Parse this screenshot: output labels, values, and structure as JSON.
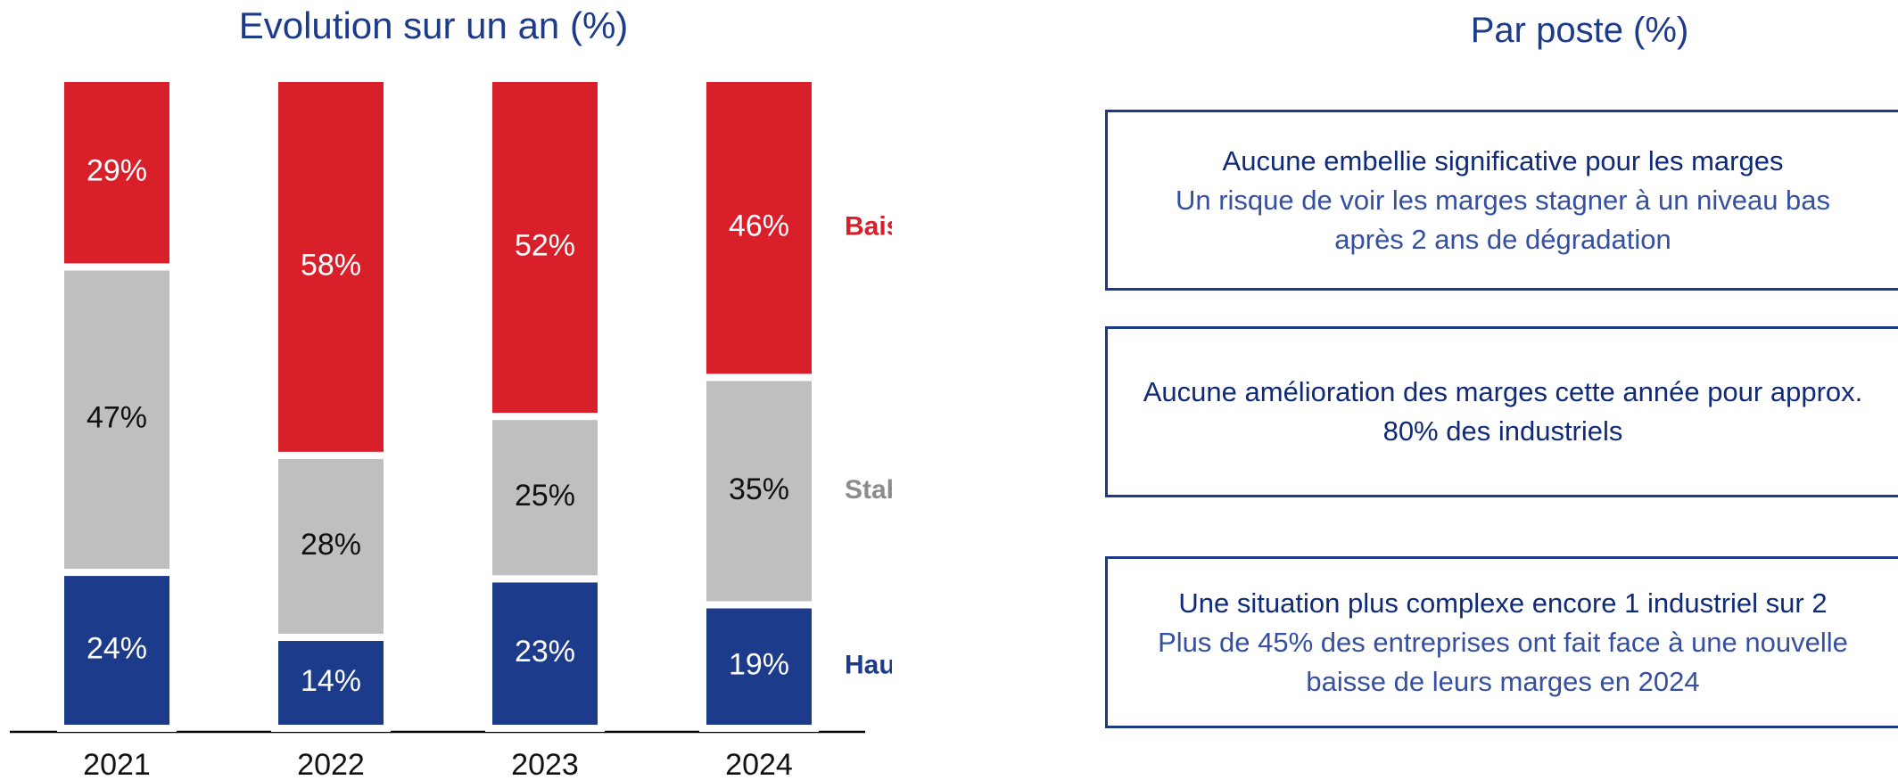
{
  "chart_data": {
    "type": "stacked_bar",
    "title": "Evolution sur un an (%)",
    "categories": [
      "2021",
      "2022",
      "2023",
      "2024"
    ],
    "series": [
      {
        "name": "Hausse",
        "color": "#1d3b8b",
        "label_color": "#ffffff",
        "values": [
          24,
          14,
          23,
          19
        ],
        "value_labels": [
          "24%",
          "14%",
          "23%",
          "19%"
        ]
      },
      {
        "name": "Stable",
        "color": "#bfbfbf",
        "label_color": "#111111",
        "values": [
          47,
          28,
          25,
          35
        ],
        "value_labels": [
          "47%",
          "28%",
          "25%",
          "35%"
        ]
      },
      {
        "name": "Baisse",
        "color": "#d9202a",
        "label_color": "#ffffff",
        "values": [
          29,
          58,
          52,
          46
        ],
        "value_labels": [
          "29%",
          "58%",
          "52%",
          "46%"
        ]
      }
    ]
  },
  "panel": {
    "title": "Par poste (%)",
    "boxes": [
      {
        "heading": "Aucune embellie significative pour les marges",
        "text": "Un risque de voir les marges stagner à un niveau bas après 2 ans de dégradation"
      },
      {
        "heading": "Aucune amélioration des marges cette année pour approx. 80% des industriels"
      },
      {
        "heading": "Une situation plus complexe encore 1 industriel sur 2",
        "text": "Plus de 45% des entreprises ont fait face à une nouvelle baisse de leurs marges en 2024"
      }
    ]
  }
}
